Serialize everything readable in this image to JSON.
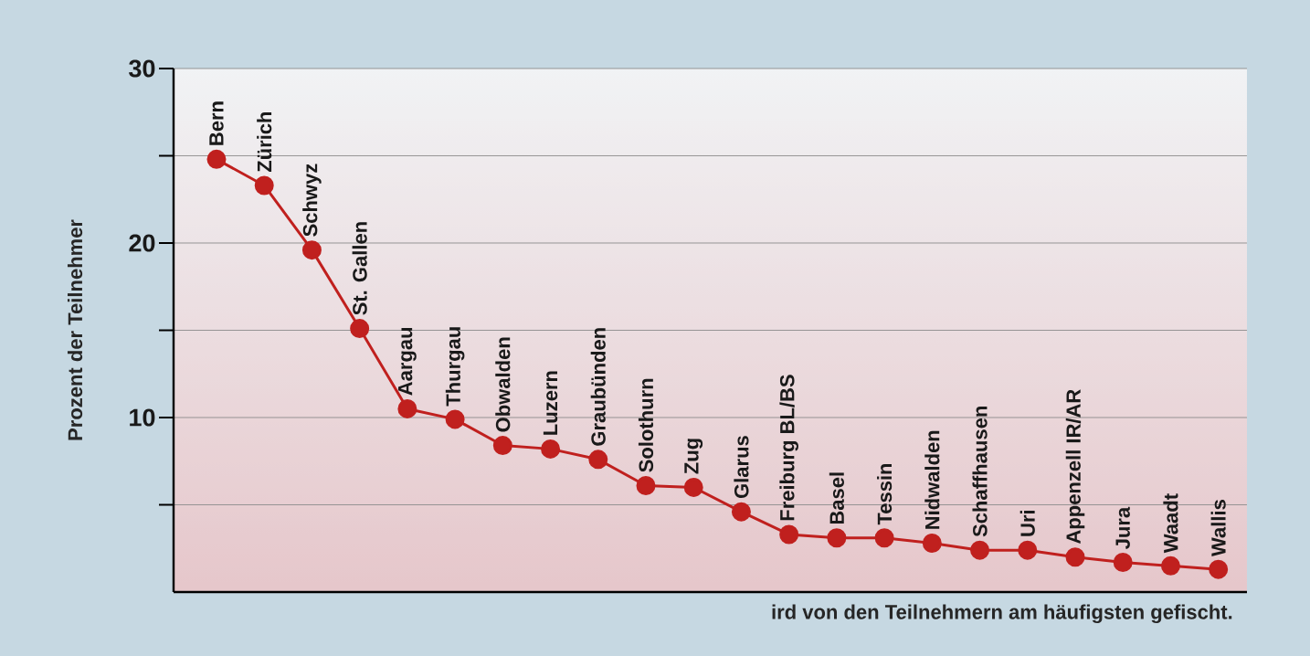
{
  "chart_data": {
    "type": "line",
    "xlabel": "ird von den Teilnehmern am häufigsten gefischt.",
    "ylabel": "Prozent der Teilnehmer",
    "categories": [
      "Bern",
      "Zürich",
      "Schwyz",
      "St. Gallen",
      "Aargau",
      "Thurgau",
      "Obwalden",
      "Luzern",
      "Graubünden",
      "Solothurn",
      "Zug",
      "Glarus",
      "Freiburg BL/BS",
      "Basel",
      "Tessin",
      "Nidwalden",
      "Schaffhausen",
      "Uri",
      "Appenzell IR/AR",
      "Jura",
      "Waadt",
      "Wallis"
    ],
    "series": [
      {
        "color": "#c0201e",
        "values": [
          24.8,
          23.3,
          19.6,
          15.1,
          10.5,
          9.9,
          8.4,
          8.2,
          7.6,
          6.1,
          6.0,
          4.6,
          3.3,
          3.1,
          3.1,
          2.8,
          2.4,
          2.4,
          2.0,
          1.7,
          1.5,
          1.3
        ]
      }
    ],
    "ylim": [
      0,
      30
    ],
    "yticks": [
      {
        "value": 5,
        "label": null
      },
      10,
      {
        "value": 15,
        "label": null
      },
      20,
      {
        "value": 25,
        "label": null
      },
      30
    ],
    "grid": "y",
    "marker": "circle",
    "line_style": "solid"
  }
}
